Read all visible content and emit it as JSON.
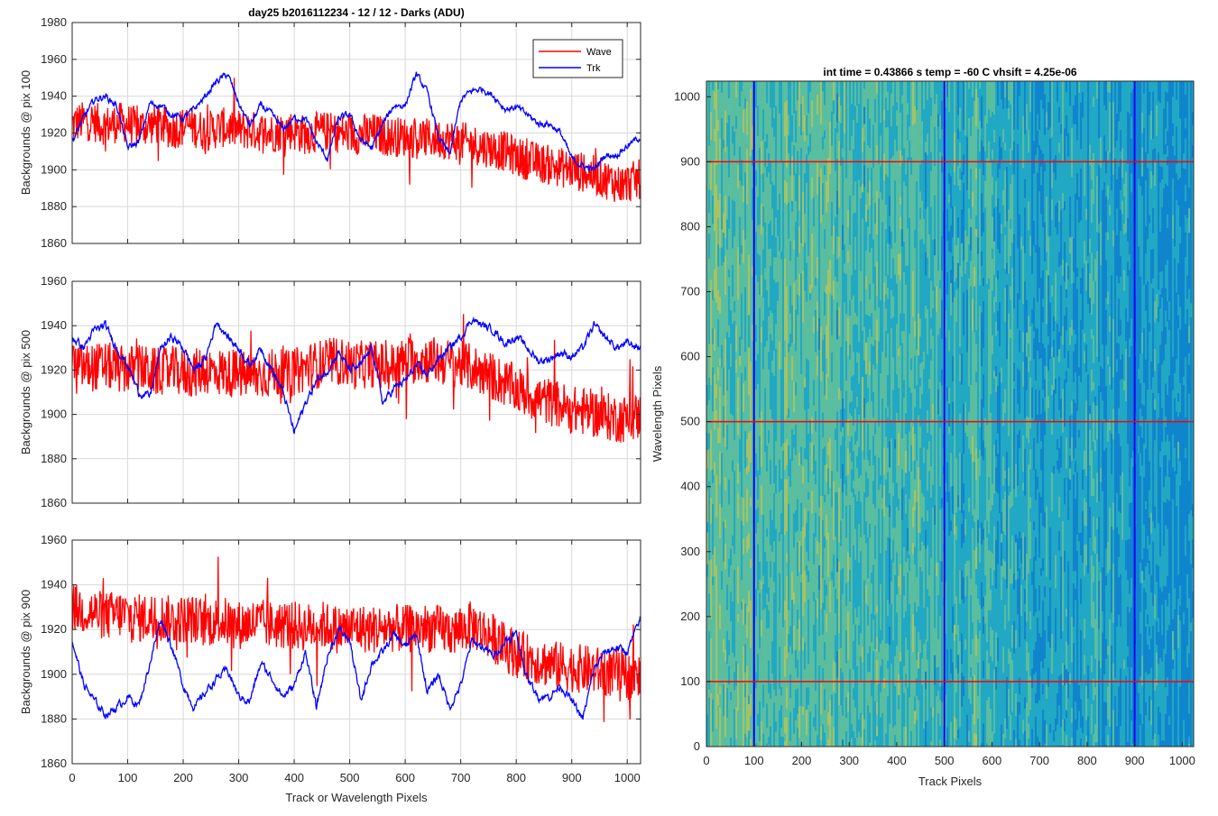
{
  "figure": {
    "title": "day25 b2016112234 - 12 / 12 - Darks (ADU)"
  },
  "legend": {
    "entries": [
      {
        "label": "Wave",
        "color": "#ff0000"
      },
      {
        "label": "Trk",
        "color": "#0000ff"
      }
    ],
    "placement": "top-right"
  },
  "colors": {
    "wave": "#ff0000",
    "trk": "#0000ff",
    "grid": "#d9d9d9",
    "axis": "#262626"
  },
  "chart_data": [
    {
      "type": "line",
      "id": "pix100",
      "title": "day25 b2016112234 - 12 / 12 - Darks (ADU)",
      "xlabel": "",
      "ylabel": "Backgrounds @ pix 100",
      "xlim": [
        0,
        1024
      ],
      "ylim": [
        1860,
        1980
      ],
      "xticks": [
        0,
        100,
        200,
        300,
        400,
        500,
        600,
        700,
        800,
        900,
        1000
      ],
      "yticks": [
        1860,
        1880,
        1900,
        1920,
        1940,
        1960,
        1980
      ],
      "grid": true,
      "legend": "top-right",
      "series": [
        {
          "name": "Wave",
          "color": "#ff0000",
          "x": [
            0,
            30,
            60,
            90,
            120,
            150,
            180,
            210,
            240,
            270,
            300,
            330,
            360,
            390,
            420,
            450,
            480,
            510,
            540,
            570,
            600,
            630,
            660,
            690,
            720,
            750,
            780,
            810,
            840,
            870,
            900,
            930,
            960,
            990,
            1024
          ],
          "y": [
            1925,
            1927,
            1924,
            1926,
            1923,
            1925,
            1922,
            1924,
            1921,
            1923,
            1922,
            1921,
            1920,
            1922,
            1919,
            1921,
            1920,
            1919,
            1920,
            1918,
            1918,
            1917,
            1917,
            1916,
            1914,
            1912,
            1910,
            1906,
            1904,
            1902,
            1900,
            1898,
            1895,
            1892,
            1895
          ]
        },
        {
          "name": "Trk",
          "color": "#0000ff",
          "x": [
            0,
            20,
            40,
            60,
            80,
            100,
            120,
            140,
            160,
            180,
            200,
            220,
            240,
            260,
            280,
            300,
            320,
            340,
            360,
            380,
            400,
            420,
            440,
            460,
            480,
            500,
            520,
            540,
            560,
            580,
            600,
            620,
            640,
            660,
            680,
            700,
            720,
            740,
            760,
            780,
            800,
            820,
            840,
            860,
            880,
            900,
            920,
            940,
            960,
            980,
            1000,
            1024
          ],
          "y": [
            1915,
            1928,
            1938,
            1940,
            1935,
            1912,
            1915,
            1936,
            1935,
            1930,
            1928,
            1933,
            1940,
            1948,
            1952,
            1936,
            1924,
            1935,
            1930,
            1922,
            1928,
            1928,
            1915,
            1906,
            1928,
            1930,
            1916,
            1912,
            1925,
            1935,
            1935,
            1952,
            1942,
            1918,
            1908,
            1938,
            1943,
            1944,
            1940,
            1933,
            1934,
            1930,
            1925,
            1925,
            1920,
            1906,
            1902,
            1900,
            1908,
            1908,
            1913,
            1918
          ]
        }
      ]
    },
    {
      "type": "line",
      "id": "pix500",
      "title": "",
      "xlabel": "",
      "ylabel": "Backgrounds @ pix 500",
      "xlim": [
        0,
        1024
      ],
      "ylim": [
        1860,
        1960
      ],
      "xticks": [
        0,
        100,
        200,
        300,
        400,
        500,
        600,
        700,
        800,
        900,
        1000
      ],
      "yticks": [
        1860,
        1880,
        1900,
        1920,
        1940,
        1960
      ],
      "grid": true,
      "series": [
        {
          "name": "Wave",
          "color": "#ff0000",
          "x": [
            0,
            30,
            60,
            90,
            120,
            150,
            180,
            210,
            240,
            270,
            300,
            330,
            360,
            390,
            420,
            450,
            480,
            510,
            540,
            570,
            600,
            630,
            660,
            690,
            720,
            750,
            780,
            810,
            840,
            870,
            900,
            930,
            960,
            990,
            1024
          ],
          "y": [
            1922,
            1921,
            1922,
            1920,
            1921,
            1919,
            1920,
            1918,
            1920,
            1919,
            1918,
            1917,
            1919,
            1918,
            1921,
            1923,
            1924,
            1922,
            1923,
            1921,
            1924,
            1925,
            1924,
            1923,
            1921,
            1918,
            1914,
            1910,
            1907,
            1905,
            1902,
            1901,
            1899,
            1898,
            1899
          ]
        },
        {
          "name": "Trk",
          "color": "#0000ff",
          "x": [
            0,
            20,
            40,
            60,
            80,
            100,
            120,
            140,
            160,
            180,
            200,
            220,
            240,
            260,
            280,
            300,
            320,
            340,
            360,
            380,
            400,
            420,
            440,
            460,
            480,
            500,
            520,
            540,
            560,
            580,
            600,
            620,
            640,
            660,
            680,
            700,
            720,
            740,
            760,
            780,
            800,
            820,
            840,
            860,
            880,
            900,
            920,
            940,
            960,
            980,
            1000,
            1024
          ],
          "y": [
            1935,
            1930,
            1938,
            1940,
            1930,
            1922,
            1910,
            1908,
            1930,
            1935,
            1930,
            1920,
            1925,
            1942,
            1935,
            1930,
            1922,
            1930,
            1920,
            1910,
            1892,
            1905,
            1915,
            1920,
            1928,
            1920,
            1922,
            1930,
            1905,
            1912,
            1915,
            1922,
            1918,
            1925,
            1930,
            1935,
            1943,
            1940,
            1938,
            1932,
            1935,
            1930,
            1924,
            1925,
            1928,
            1926,
            1930,
            1940,
            1935,
            1930,
            1932,
            1930
          ]
        }
      ]
    },
    {
      "type": "line",
      "id": "pix900",
      "title": "",
      "xlabel": "Track or Wavelength Pixels",
      "ylabel": "Backgrounds @ pix 900",
      "xlim": [
        0,
        1024
      ],
      "ylim": [
        1860,
        1960
      ],
      "xticks": [
        0,
        100,
        200,
        300,
        400,
        500,
        600,
        700,
        800,
        900,
        1000
      ],
      "yticks": [
        1860,
        1880,
        1900,
        1920,
        1940,
        1960
      ],
      "grid": true,
      "series": [
        {
          "name": "Wave",
          "color": "#ff0000",
          "x": [
            0,
            30,
            60,
            90,
            120,
            150,
            180,
            210,
            240,
            270,
            300,
            330,
            360,
            390,
            420,
            450,
            480,
            510,
            540,
            570,
            600,
            630,
            660,
            690,
            720,
            750,
            780,
            810,
            840,
            870,
            900,
            930,
            960,
            990,
            1024
          ],
          "y": [
            1930,
            1928,
            1926,
            1927,
            1925,
            1926,
            1924,
            1925,
            1923,
            1924,
            1922,
            1923,
            1922,
            1922,
            1921,
            1922,
            1920,
            1921,
            1920,
            1921,
            1920,
            1921,
            1920,
            1919,
            1922,
            1918,
            1912,
            1908,
            1906,
            1904,
            1903,
            1902,
            1901,
            1900,
            1898
          ]
        },
        {
          "name": "Trk",
          "color": "#0000ff",
          "x": [
            0,
            20,
            40,
            60,
            80,
            100,
            120,
            140,
            160,
            180,
            200,
            220,
            240,
            260,
            280,
            300,
            320,
            340,
            360,
            380,
            400,
            420,
            440,
            460,
            480,
            500,
            520,
            540,
            560,
            580,
            600,
            620,
            640,
            660,
            680,
            700,
            720,
            740,
            760,
            780,
            800,
            820,
            840,
            860,
            880,
            900,
            920,
            940,
            960,
            980,
            1000,
            1024
          ],
          "y": [
            1915,
            1896,
            1888,
            1882,
            1885,
            1890,
            1886,
            1905,
            1925,
            1912,
            1895,
            1885,
            1892,
            1898,
            1902,
            1890,
            1888,
            1905,
            1898,
            1890,
            1895,
            1910,
            1885,
            1908,
            1920,
            1915,
            1888,
            1905,
            1910,
            1918,
            1912,
            1918,
            1892,
            1900,
            1885,
            1895,
            1915,
            1912,
            1908,
            1915,
            1918,
            1898,
            1890,
            1890,
            1895,
            1888,
            1880,
            1902,
            1910,
            1912,
            1910,
            1925
          ]
        }
      ]
    },
    {
      "type": "heatmap",
      "id": "image",
      "title": "int time = 0.43866 s    temp = -60 C    vhsift = 4.25e-06",
      "xlabel": "Track Pixels",
      "ylabel": "Wavelength Pixels",
      "xlim": [
        0,
        1024
      ],
      "ylim": [
        0,
        1024
      ],
      "xticks": [
        0,
        100,
        200,
        300,
        400,
        500,
        600,
        700,
        800,
        900,
        1000
      ],
      "yticks": [
        0,
        100,
        200,
        300,
        400,
        500,
        600,
        700,
        800,
        900,
        1000
      ],
      "colormap": [
        "#0a7fd0",
        "#1ea7c6",
        "#5fbf9b",
        "#b5c65a"
      ],
      "grid": false,
      "vertical_marker_lines": {
        "color": "#0000ff",
        "x": [
          100,
          500,
          900
        ]
      },
      "horizontal_marker_lines": {
        "color": "#ff0000",
        "y": [
          100,
          500,
          900
        ]
      }
    }
  ]
}
